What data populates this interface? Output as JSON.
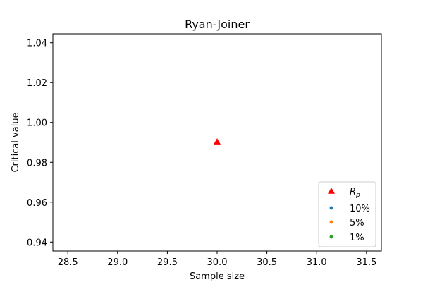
{
  "chart_data": {
    "type": "scatter",
    "title": "Ryan-Joiner",
    "xlabel": "Sample size",
    "ylabel": "Critical value",
    "xlim": [
      28.35,
      31.65
    ],
    "ylim": [
      0.9355,
      1.0445
    ],
    "xticks": [
      "28.5",
      "29.0",
      "29.5",
      "30.0",
      "30.5",
      "31.0",
      "31.5"
    ],
    "yticks": [
      "0.94",
      "0.96",
      "0.98",
      "1.00",
      "1.02",
      "1.04"
    ],
    "grid": false,
    "legend_position": "lower-right",
    "series": [
      {
        "name": "R",
        "name_subscript": "p",
        "marker": "triangle-up",
        "color": "#ff0000",
        "points": [
          {
            "x": 30,
            "y": 0.9903
          }
        ]
      },
      {
        "name": "10%",
        "marker": "circle",
        "color": "#1f77b4",
        "points": []
      },
      {
        "name": "5%",
        "marker": "circle",
        "color": "#ff7f0e",
        "points": []
      },
      {
        "name": "1%",
        "marker": "circle",
        "color": "#2ca02c",
        "points": []
      }
    ]
  }
}
